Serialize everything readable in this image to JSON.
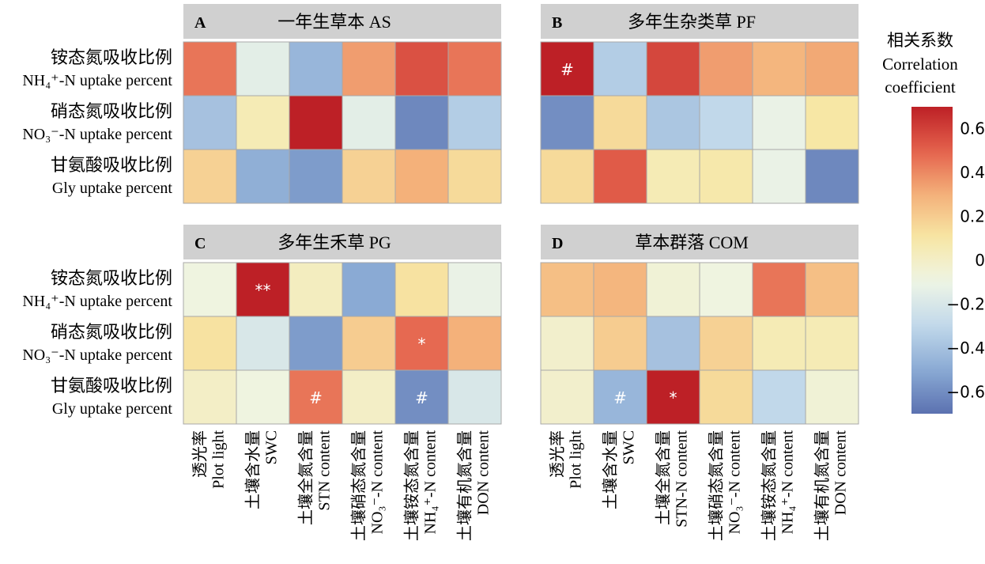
{
  "chart_data": {
    "type": "heatmap",
    "rows": [
      {
        "zh": "铵态氮吸收比例",
        "en": "NH₄⁺-N uptake percent"
      },
      {
        "zh": "硝态氮吸收比例",
        "en": "NO₃⁻-N uptake percent"
      },
      {
        "zh": "甘氨酸吸收比例",
        "en": "Gly uptake percent"
      }
    ],
    "column_sets": [
      [
        {
          "zh": "透光率",
          "en": "Plot light"
        },
        {
          "zh": "土壤含水量",
          "en": "SWC"
        },
        {
          "zh": "土壤全氮含量",
          "en": "STN content"
        },
        {
          "zh": "土壤硝态氮含量",
          "en": "NO₃⁻-N content"
        },
        {
          "zh": "土壤铵态氮含量",
          "en": "NH₄⁺-N content"
        },
        {
          "zh": "土壤有机氮含量",
          "en": "DON content"
        }
      ],
      [
        {
          "zh": "透光率",
          "en": "Plot light"
        },
        {
          "zh": "土壤含水量",
          "en": "SWC"
        },
        {
          "zh": "土壤全氮含量",
          "en": "STN-N content"
        },
        {
          "zh": "土壤硝态氮含量",
          "en": "NO₃⁻-N content"
        },
        {
          "zh": "土壤铵态氮含量",
          "en": "NH₄⁺-N content"
        },
        {
          "zh": "土壤有机氮含量",
          "en": "DON content"
        }
      ]
    ],
    "panels": [
      {
        "letter": "A",
        "title": "一年生草本 AS",
        "values": [
          [
            0.45,
            -0.15,
            -0.45,
            0.35,
            0.55,
            0.45
          ],
          [
            -0.4,
            0.05,
            0.7,
            -0.15,
            -0.62,
            -0.35
          ],
          [
            0.18,
            -0.48,
            -0.55,
            0.18,
            0.3,
            0.15
          ]
        ],
        "marks": [
          [
            "",
            "",
            "",
            "",
            "",
            ""
          ],
          [
            "",
            "",
            "",
            "",
            "",
            ""
          ],
          [
            "",
            "",
            "",
            "",
            "",
            ""
          ]
        ]
      },
      {
        "letter": "B",
        "title": "多年生杂类草 PF",
        "values": [
          [
            0.7,
            -0.35,
            0.58,
            0.35,
            0.28,
            0.32
          ],
          [
            -0.6,
            0.15,
            -0.38,
            -0.3,
            -0.12,
            0.1
          ],
          [
            0.15,
            0.52,
            0.05,
            0.08,
            -0.12,
            -0.62
          ]
        ],
        "marks": [
          [
            "#",
            "",
            "",
            "",
            "",
            ""
          ],
          [
            "",
            "",
            "",
            "",
            "",
            ""
          ],
          [
            "",
            "",
            "",
            "",
            "",
            ""
          ]
        ]
      },
      {
        "letter": "C",
        "title": "多年生禾草 PG",
        "values": [
          [
            -0.08,
            0.7,
            0.02,
            -0.5,
            0.12,
            -0.12
          ],
          [
            0.12,
            -0.2,
            -0.55,
            0.2,
            0.48,
            0.3
          ],
          [
            0.0,
            -0.08,
            0.45,
            0.0,
            -0.6,
            -0.2
          ]
        ],
        "marks": [
          [
            "",
            "**",
            "",
            "",
            "",
            ""
          ],
          [
            "",
            "",
            "",
            "",
            "*",
            ""
          ],
          [
            "",
            "",
            "#",
            "",
            "#",
            ""
          ]
        ]
      },
      {
        "letter": "D",
        "title": "草本群落 COM",
        "values": [
          [
            0.25,
            0.28,
            -0.05,
            -0.08,
            0.45,
            0.25
          ],
          [
            -0.02,
            0.2,
            -0.4,
            0.18,
            0.05,
            0.05
          ],
          [
            -0.02,
            -0.45,
            0.7,
            0.15,
            -0.3,
            -0.05
          ]
        ],
        "marks": [
          [
            "",
            "",
            "",
            "",
            "",
            ""
          ],
          [
            "",
            "",
            "",
            "",
            "",
            ""
          ],
          [
            "",
            "#",
            "*",
            "",
            "",
            ""
          ]
        ]
      }
    ],
    "colorbar": {
      "title_zh": "相关系数",
      "title_en": [
        "Correlation",
        "coefficient"
      ],
      "range": [
        -0.7,
        0.7
      ],
      "ticks": [
        0.6,
        0.4,
        0.2,
        0,
        -0.2,
        -0.4,
        -0.6
      ],
      "tick_labels": [
        "0.6",
        "0.4",
        "0.2",
        "0",
        "−0.2",
        "−0.4",
        "−0.6"
      ],
      "colors": [
        "#5b71b0",
        "#8aaad4",
        "#c1d8ea",
        "#eef5e6",
        "#f7e7a5",
        "#f4b17a",
        "#e4614c",
        "#bd2026"
      ]
    }
  }
}
